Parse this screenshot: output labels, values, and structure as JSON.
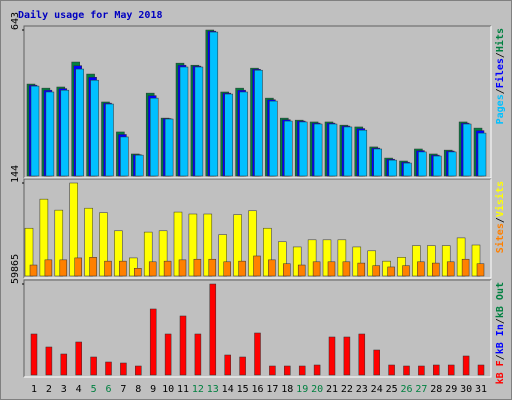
{
  "chart_data": [
    {
      "type": "bar",
      "title": "Daily usage for May 2018",
      "legend_separator": "/",
      "ylim": [
        0,
        643
      ],
      "yticks": [
        643
      ],
      "series": [
        {
          "name": "Hits",
          "color": "#008040",
          "values": [
            405,
            387,
            392,
            502,
            449,
            326,
            194,
            97,
            365,
            255,
            497,
            488,
            643,
            370,
            387,
            475,
            343,
            255,
            246,
            238,
            238,
            224,
            216,
            128,
            79,
            66,
            119,
            97,
            114,
            238,
            211
          ]
        },
        {
          "name": "Files",
          "color": "#0000ff",
          "values": [
            400,
            378,
            385,
            486,
            435,
            321,
            183,
            94,
            354,
            253,
            488,
            484,
            638,
            365,
            378,
            470,
            336,
            248,
            242,
            233,
            233,
            220,
            209,
            123,
            74,
            61,
            112,
            92,
            110,
            233,
            200
          ]
        },
        {
          "name": "Pages",
          "color": "#00c0ff",
          "values": [
            396,
            370,
            378,
            471,
            422,
            317,
            172,
            92,
            343,
            251,
            480,
            480,
            634,
            361,
            370,
            466,
            330,
            242,
            238,
            229,
            229,
            216,
            202,
            119,
            70,
            57,
            106,
            88,
            106,
            229,
            189
          ]
        }
      ]
    },
    {
      "type": "bar",
      "legend_separator": "/",
      "ylim": [
        0,
        144
      ],
      "yticks": [
        144
      ],
      "series": [
        {
          "name": "Visits",
          "color": "#ffff00",
          "values": [
            74,
            119,
            102,
            144,
            105,
            98,
            70,
            28,
            68,
            70,
            99,
            96,
            96,
            64,
            95,
            101,
            74,
            53,
            45,
            56,
            56,
            56,
            45,
            39,
            23,
            29,
            47,
            47,
            47,
            59,
            48
          ]
        },
        {
          "name": "Sites",
          "color": "#ff8000",
          "values": [
            17,
            25,
            25,
            28,
            29,
            23,
            23,
            12,
            22,
            23,
            25,
            26,
            26,
            22,
            23,
            31,
            25,
            19,
            17,
            22,
            22,
            22,
            20,
            16,
            14,
            16,
            22,
            20,
            22,
            26,
            19
          ]
        }
      ]
    },
    {
      "type": "bar",
      "legend_separator": "/",
      "ylim": [
        0,
        59865
      ],
      "yticks": [
        59865
      ],
      "series": [
        {
          "name": "kB F",
          "color": "#ff0000",
          "values": [
            26978,
            18424,
            13818,
            21714,
            11844,
            8554,
            7896,
            5922,
            43428,
            26978,
            38822,
            26978,
            59865,
            13160,
            11844,
            27636,
            5922,
            5922,
            5922,
            6580,
            25004,
            25004,
            26978,
            16450,
            6580,
            5922,
            5922,
            6580,
            6580,
            12502,
            6580
          ]
        }
      ],
      "extra_legend": [
        {
          "name": "kB In",
          "color": "#0000ff"
        },
        {
          "name": "kB Out",
          "color": "#008040"
        }
      ],
      "categories": [
        "1",
        "2",
        "3",
        "4",
        "5",
        "6",
        "7",
        "8",
        "9",
        "10",
        "11",
        "12",
        "13",
        "14",
        "15",
        "16",
        "17",
        "18",
        "19",
        "20",
        "21",
        "22",
        "23",
        "24",
        "25",
        "26",
        "27",
        "28",
        "29",
        "30",
        "31"
      ],
      "category_colors": [
        "#000000",
        "#000000",
        "#000000",
        "#000000",
        "#008040",
        "#008040",
        "#000000",
        "#000000",
        "#000000",
        "#000000",
        "#000000",
        "#008040",
        "#008040",
        "#000000",
        "#000000",
        "#000000",
        "#000000",
        "#000000",
        "#008040",
        "#008040",
        "#000000",
        "#000000",
        "#000000",
        "#000000",
        "#000000",
        "#008040",
        "#008040",
        "#000000",
        "#000000",
        "#000000",
        "#000000"
      ]
    }
  ]
}
